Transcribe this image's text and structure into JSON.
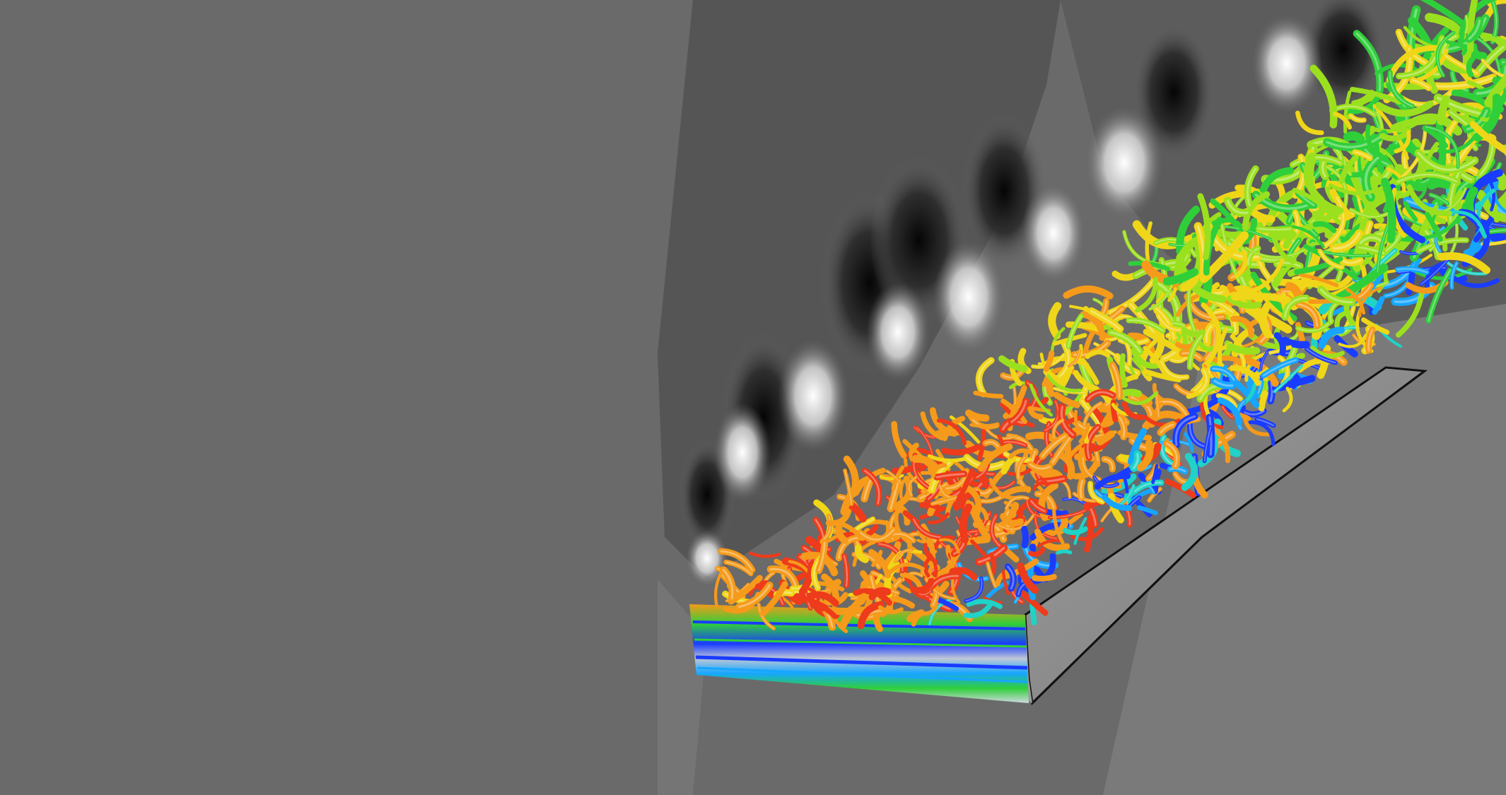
{
  "scene": {
    "colors": {
      "background": "#6a6a6a",
      "contour_dark": "#0c0c0c",
      "contour_light": "#ffffff",
      "wall": "#8a8a8a",
      "wall_edge": "#111111"
    },
    "vortex_palette": [
      "#1a3cff",
      "#16a6ff",
      "#1fd3c6",
      "#2fcf3a",
      "#9be01e",
      "#f0d618",
      "#f59a1a",
      "#ee3b1b"
    ]
  }
}
